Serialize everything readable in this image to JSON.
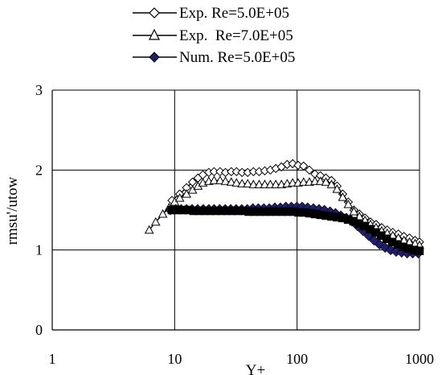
{
  "chart_data": {
    "type": "line",
    "title": "",
    "xlabel": "Y+",
    "ylabel": "rmsu'/utow",
    "x_scale": "log",
    "xlim": [
      1,
      1000
    ],
    "ylim": [
      0,
      3
    ],
    "x_ticks": [
      "1",
      "10",
      "100",
      "1000"
    ],
    "y_ticks": [
      "0",
      "1",
      "2",
      "3"
    ],
    "grid": true,
    "legend_position": "top-center",
    "series": [
      {
        "name": "Exp. Re=5.0E+05",
        "marker": "diamond-open",
        "color": "#000000",
        "x": [
          9.5,
          11,
          12.5,
          14,
          15.5,
          17,
          19,
          21,
          23.5,
          26,
          29,
          32,
          35.5,
          39.5,
          44,
          49,
          54.5,
          60.5,
          67,
          74.5,
          83,
          92,
          102,
          113,
          126,
          140,
          155,
          172,
          191,
          212,
          236,
          262,
          291,
          323,
          359,
          398,
          442,
          491,
          545,
          605,
          672,
          746,
          828,
          920,
          1000
        ],
        "y": [
          1.62,
          1.7,
          1.78,
          1.85,
          1.9,
          1.94,
          1.97,
          1.98,
          1.98,
          1.97,
          1.98,
          1.98,
          1.97,
          1.97,
          1.98,
          1.98,
          1.99,
          2.0,
          2.02,
          2.04,
          2.07,
          2.08,
          2.06,
          2.05,
          2.0,
          1.95,
          1.93,
          1.9,
          1.87,
          1.8,
          1.7,
          1.6,
          1.5,
          1.45,
          1.4,
          1.35,
          1.32,
          1.28,
          1.25,
          1.22,
          1.2,
          1.17,
          1.15,
          1.12,
          1.1
        ]
      },
      {
        "name": "Exp.  Re=7.0E+05",
        "marker": "triangle-open",
        "color": "#000000",
        "x": [
          6.2,
          7,
          8,
          9,
          10,
          11,
          12.5,
          14,
          15.5,
          17,
          19,
          21,
          23.5,
          26,
          29,
          32,
          35.5,
          39.5,
          44,
          49,
          54.5,
          60.5,
          67,
          74.5,
          83,
          92,
          102,
          113,
          126,
          140,
          155,
          172,
          191,
          212,
          236,
          262,
          291,
          323,
          359,
          398,
          442,
          491,
          545,
          605,
          672,
          746,
          828,
          920,
          1000
        ],
        "y": [
          1.25,
          1.35,
          1.45,
          1.53,
          1.6,
          1.65,
          1.7,
          1.75,
          1.8,
          1.84,
          1.86,
          1.87,
          1.87,
          1.86,
          1.85,
          1.84,
          1.83,
          1.83,
          1.82,
          1.82,
          1.82,
          1.82,
          1.82,
          1.82,
          1.83,
          1.84,
          1.84,
          1.85,
          1.85,
          1.86,
          1.86,
          1.85,
          1.82,
          1.76,
          1.66,
          1.57,
          1.48,
          1.42,
          1.37,
          1.32,
          1.28,
          1.24,
          1.21,
          1.18,
          1.15,
          1.12,
          1.1,
          1.08,
          1.06
        ]
      },
      {
        "name": "Num. Re=5.0E+05",
        "marker": "diamond-filled",
        "color": "#1f1f6e",
        "x": [
          9.2,
          10.2,
          11.3,
          12.5,
          13.9,
          15.4,
          17.1,
          19,
          21,
          23.3,
          25.9,
          28.7,
          31.8,
          35.3,
          39.2,
          43.5,
          48.2,
          53.5,
          59.3,
          65.8,
          73,
          81,
          89.8,
          99.6,
          110,
          122,
          136,
          151,
          167,
          186,
          206,
          228,
          253,
          281,
          312,
          346,
          384,
          426,
          472,
          524,
          581,
          645,
          715,
          793,
          880,
          977
        ],
        "y": [
          1.5,
          1.51,
          1.51,
          1.51,
          1.51,
          1.51,
          1.51,
          1.51,
          1.51,
          1.51,
          1.51,
          1.51,
          1.51,
          1.51,
          1.51,
          1.52,
          1.52,
          1.52,
          1.52,
          1.53,
          1.53,
          1.54,
          1.54,
          1.54,
          1.54,
          1.53,
          1.52,
          1.51,
          1.5,
          1.48,
          1.46,
          1.43,
          1.4,
          1.36,
          1.3,
          1.24,
          1.18,
          1.12,
          1.07,
          1.03,
          1.0,
          0.98,
          0.97,
          0.96,
          0.96,
          0.96
        ]
      },
      {
        "name": "",
        "marker": "square-filled",
        "color": "#000000",
        "x": [
          9.5,
          10.5,
          11.6,
          12.9,
          14.3,
          15.8,
          17.6,
          19.5,
          21.6,
          24,
          26.6,
          29.5,
          32.7,
          36.3,
          40.3,
          44.7,
          49.6,
          55,
          61,
          67.7,
          75.1,
          83.3,
          92.4,
          102.5,
          113.7,
          126,
          140,
          155,
          172,
          191,
          212,
          235,
          261,
          289,
          321,
          356,
          395,
          438,
          486,
          539,
          598,
          663,
          735,
          815,
          905,
          1000
        ],
        "y": [
          1.5,
          1.5,
          1.5,
          1.5,
          1.49,
          1.49,
          1.49,
          1.49,
          1.49,
          1.49,
          1.49,
          1.49,
          1.49,
          1.49,
          1.48,
          1.48,
          1.48,
          1.48,
          1.48,
          1.48,
          1.48,
          1.48,
          1.48,
          1.47,
          1.47,
          1.46,
          1.45,
          1.44,
          1.43,
          1.42,
          1.41,
          1.4,
          1.38,
          1.36,
          1.33,
          1.3,
          1.26,
          1.22,
          1.18,
          1.14,
          1.1,
          1.07,
          1.04,
          1.02,
          1.0,
          0.99
        ]
      }
    ]
  }
}
